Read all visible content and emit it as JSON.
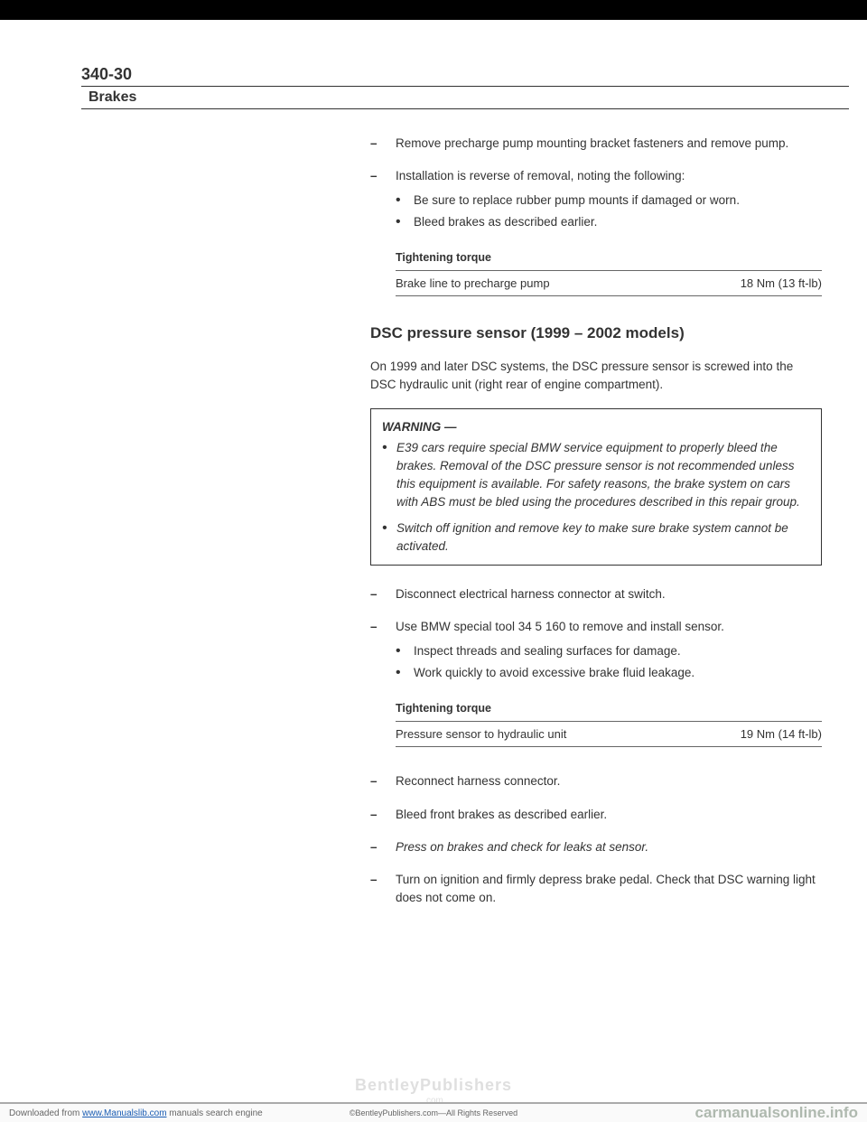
{
  "page_number": "340-30",
  "section_title": "Brakes",
  "content": {
    "item1": "Remove precharge pump mounting bracket fasteners and remove pump.",
    "item2": {
      "main": "Installation is reverse of removal, noting the following:",
      "bullets": [
        "Be sure to replace rubber pump mounts if damaged or worn.",
        "Bleed brakes as described earlier."
      ]
    },
    "torque1": {
      "title": "Tightening torque",
      "label": "Brake line to precharge pump",
      "value": "18 Nm (13 ft-lb)"
    },
    "heading": "DSC pressure sensor (1999 – 2002 models)",
    "para1": "On 1999 and later DSC systems, the DSC pressure sensor is screwed into the DSC hydraulic unit (right rear of engine compartment).",
    "warning": {
      "title": "WARNING —",
      "bullets": [
        "E39 cars require special BMW service equipment to properly bleed the brakes. Removal of the DSC pressure sensor is not recommended unless this equipment is available. For safety reasons, the brake system on cars with ABS must be bled using the procedures described in this repair group.",
        "Switch off ignition and remove key to make sure brake system cannot be activated."
      ]
    },
    "item3": "Disconnect electrical harness connector at switch.",
    "item4": {
      "main": "Use BMW special tool 34 5 160 to remove and install sensor.",
      "bullets": [
        "Inspect threads and sealing surfaces for damage.",
        "Work quickly to avoid excessive brake fluid leakage."
      ]
    },
    "torque2": {
      "title": "Tightening torque",
      "label": "Pressure sensor to hydraulic unit",
      "value": "19 Nm (14 ft-lb)"
    },
    "item5": "Reconnect harness connector.",
    "item6": "Bleed front brakes as described earlier.",
    "item7": "Press on brakes and check for leaks at sensor.",
    "item8": "Turn on ignition and firmly depress brake pedal. Check that DSC warning light does not come on."
  },
  "watermark": {
    "main": "BentleyPublishers",
    "sub": ".com"
  },
  "footer": {
    "left_prefix": "Downloaded from ",
    "left_link": "www.Manualslib.com",
    "left_suffix": " manuals search engine",
    "mid": "©BentleyPublishers.com—All Rights Reserved",
    "right": "carmanualsonline.info"
  }
}
